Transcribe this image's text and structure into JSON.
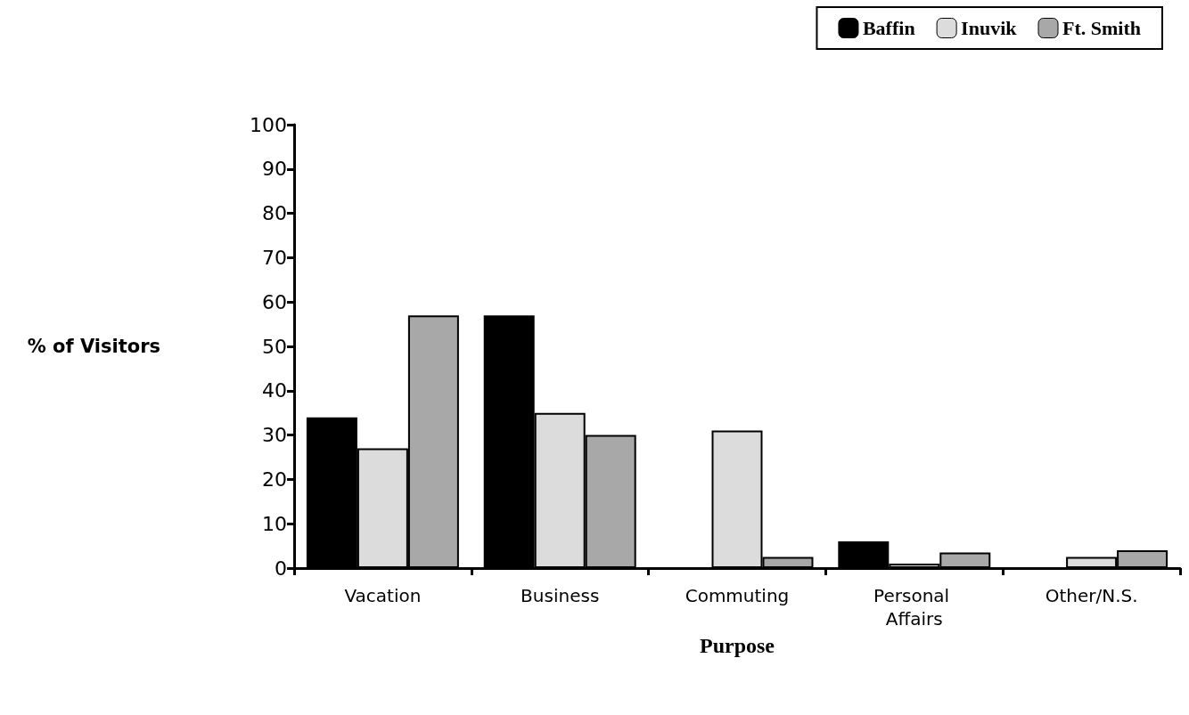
{
  "chart_data": {
    "type": "bar",
    "xlabel": "Purpose",
    "ylabel": "% of Visitors",
    "categories": [
      "Vacation",
      "Business",
      "Commuting",
      "Personal Affairs",
      "Other/N.S."
    ],
    "series": [
      {
        "name": "Baffin",
        "color": "#000000",
        "values": [
          34,
          57,
          0,
          6,
          0
        ]
      },
      {
        "name": "Inuvik",
        "color": "#dcdcdc",
        "values": [
          27,
          35,
          31,
          1,
          2.5
        ]
      },
      {
        "name": "Ft. Smith",
        "color": "#a8a8a8",
        "values": [
          57,
          30,
          2.5,
          3.5,
          4
        ]
      }
    ],
    "ylim": [
      0,
      100
    ],
    "yticks": [
      0,
      10,
      20,
      30,
      40,
      50,
      60,
      70,
      80,
      90,
      100
    ],
    "grid": false,
    "legend": "top right"
  }
}
